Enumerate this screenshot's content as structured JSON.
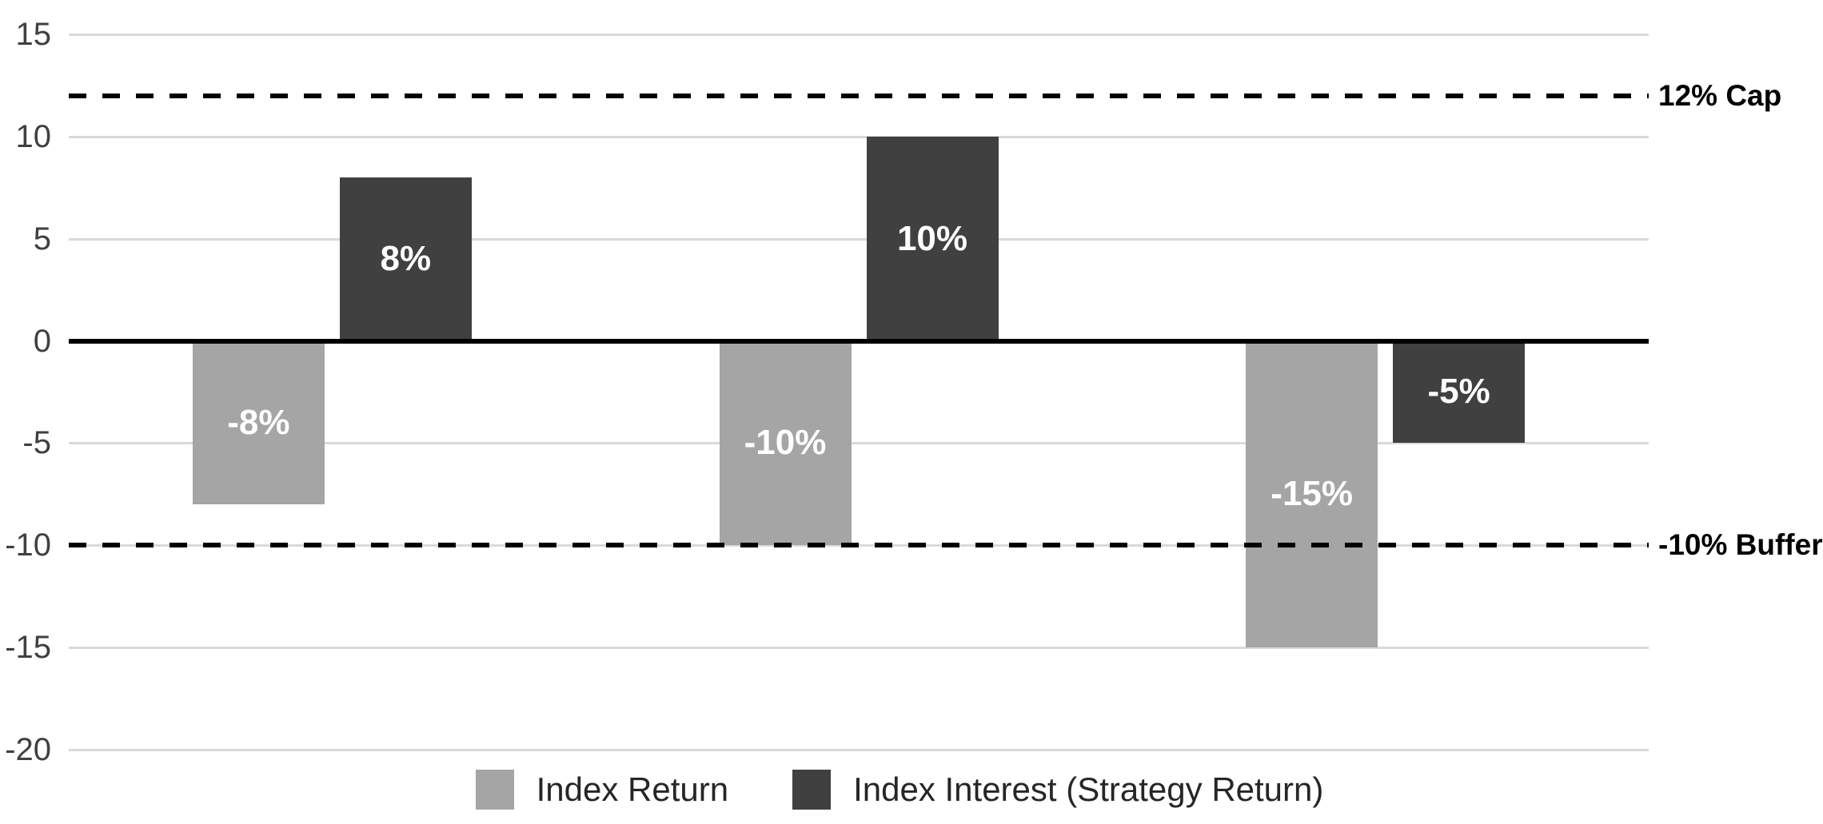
{
  "chart_data": {
    "type": "bar",
    "title": "",
    "xlabel": "",
    "ylabel": "",
    "categories": [
      "",
      "",
      ""
    ],
    "series": [
      {
        "name": "Index Return",
        "color": "#a5a5a5",
        "values": [
          -8,
          -10,
          -15
        ],
        "bar_labels": [
          "-8%",
          "-10%",
          "-15%"
        ]
      },
      {
        "name": "Index Interest (Strategy Return)",
        "color": "#404040",
        "values": [
          8,
          10,
          -5
        ],
        "bar_labels": [
          "8%",
          "10%",
          "-5%"
        ]
      }
    ],
    "ylim": [
      -20,
      15
    ],
    "yticks": [
      15,
      10,
      5,
      0,
      -5,
      -10,
      -15,
      -20
    ],
    "grid": true,
    "legend_position": "bottom",
    "reference_lines": [
      {
        "value": 12,
        "label": "12% Cap",
        "style": "dashed",
        "color": "#000000"
      },
      {
        "value": -10,
        "label": "-10% Buffer",
        "style": "dashed",
        "color": "#000000"
      }
    ],
    "zero_line": true,
    "colors": {
      "gridline": "#d9d9d9",
      "zero_line": "#000000",
      "tick_label": "#404040",
      "bar_label_text": "#ffffff"
    }
  }
}
